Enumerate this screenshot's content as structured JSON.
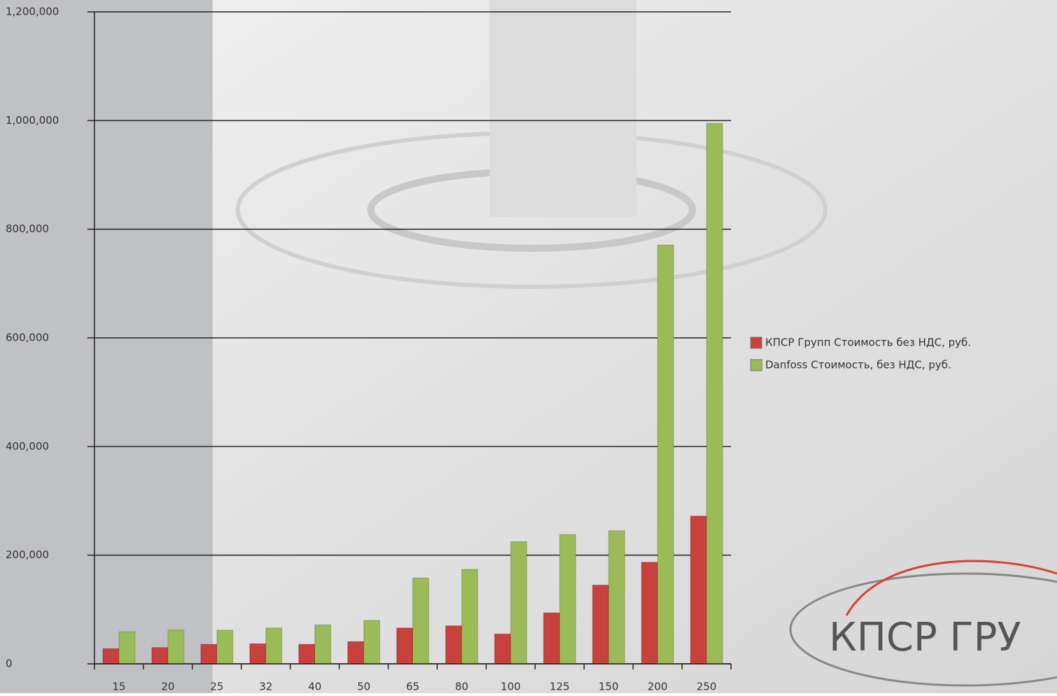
{
  "chart_data": {
    "type": "bar",
    "categories": [
      "15",
      "20",
      "25",
      "32",
      "40",
      "50",
      "65",
      "80",
      "100",
      "125",
      "150",
      "200",
      "250"
    ],
    "series": [
      {
        "name": "КПСР Групп Стоимость без НДС, руб.",
        "color": "#c8413c",
        "values": [
          28000,
          30000,
          36000,
          37000,
          36000,
          41000,
          66000,
          70000,
          55000,
          94000,
          145000,
          187000,
          272000
        ]
      },
      {
        "name": "Danfoss Стоимость, без НДС, руб.",
        "color": "#9bbb59",
        "values": [
          59000,
          62000,
          62000,
          66000,
          72000,
          80000,
          158000,
          174000,
          225000,
          238000,
          245000,
          771000,
          995000
        ]
      }
    ],
    "ylim": [
      0,
      1200000
    ],
    "yticks": [
      0,
      {
        "value": 200000,
        "label": "200,000"
      },
      {
        "value": 400000,
        "label": "400,000"
      },
      {
        "value": 600000,
        "label": "600,000"
      },
      {
        "value": 800000,
        "label": "800,000"
      },
      {
        "value": 1000000,
        "label": "1,000,000"
      },
      {
        "value": 1200000,
        "label": "1,200,000"
      }
    ],
    "grid": true,
    "legend": "right",
    "logo": "КПСР ГРУ"
  }
}
